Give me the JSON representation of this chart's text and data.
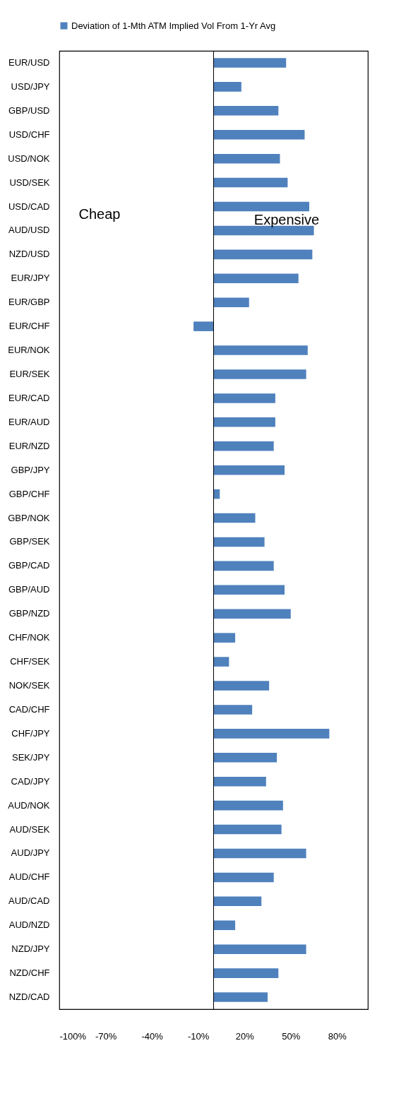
{
  "chart_data": {
    "type": "bar",
    "orientation": "horizontal",
    "categories": [
      "EUR/USD",
      "USD/JPY",
      "GBP/USD",
      "USD/CHF",
      "USD/NOK",
      "USD/SEK",
      "USD/CAD",
      "AUD/USD",
      "NZD/USD",
      "EUR/JPY",
      "EUR/GBP",
      "EUR/CHF",
      "EUR/NOK",
      "EUR/SEK",
      "EUR/CAD",
      "EUR/AUD",
      "EUR/NZD",
      "GBP/JPY",
      "GBP/CHF",
      "GBP/NOK",
      "GBP/SEK",
      "GBP/CAD",
      "GBP/AUD",
      "GBP/NZD",
      "CHF/NOK",
      "CHF/SEK",
      "NOK/SEK",
      "CAD/CHF",
      "CHF/JPY",
      "SEK/JPY",
      "CAD/JPY",
      "AUD/NOK",
      "AUD/SEK",
      "AUD/JPY",
      "AUD/CHF",
      "AUD/CAD",
      "AUD/NZD",
      "NZD/JPY",
      "NZD/CHF",
      "NZD/CAD"
    ],
    "series": [
      {
        "name": "Deviation of 1-Mth ATM Implied Vol From 1-Yr Avg",
        "color": "#4f81bd",
        "values": [
          47,
          18,
          42,
          59,
          43,
          48,
          62,
          65,
          64,
          55,
          23,
          -13,
          61,
          60,
          40,
          40,
          39,
          46,
          4,
          27,
          33,
          39,
          46,
          50,
          14,
          10,
          36,
          25,
          75,
          41,
          34,
          45,
          44,
          60,
          39,
          31,
          14,
          60,
          42,
          35
        ]
      }
    ],
    "xlim": [
      -100,
      100
    ],
    "xticks": [
      {
        "value": -100,
        "label": "-100%"
      },
      {
        "value": -70,
        "label": "-70%"
      },
      {
        "value": -40,
        "label": "-40%"
      },
      {
        "value": -10,
        "label": "-10%"
      },
      {
        "value": 20,
        "label": "20%"
      },
      {
        "value": 50,
        "label": "50%"
      },
      {
        "value": 80,
        "label": "80%"
      }
    ],
    "annotations": [
      "Cheap",
      "Expensive"
    ],
    "grid": false,
    "legend": "top"
  }
}
